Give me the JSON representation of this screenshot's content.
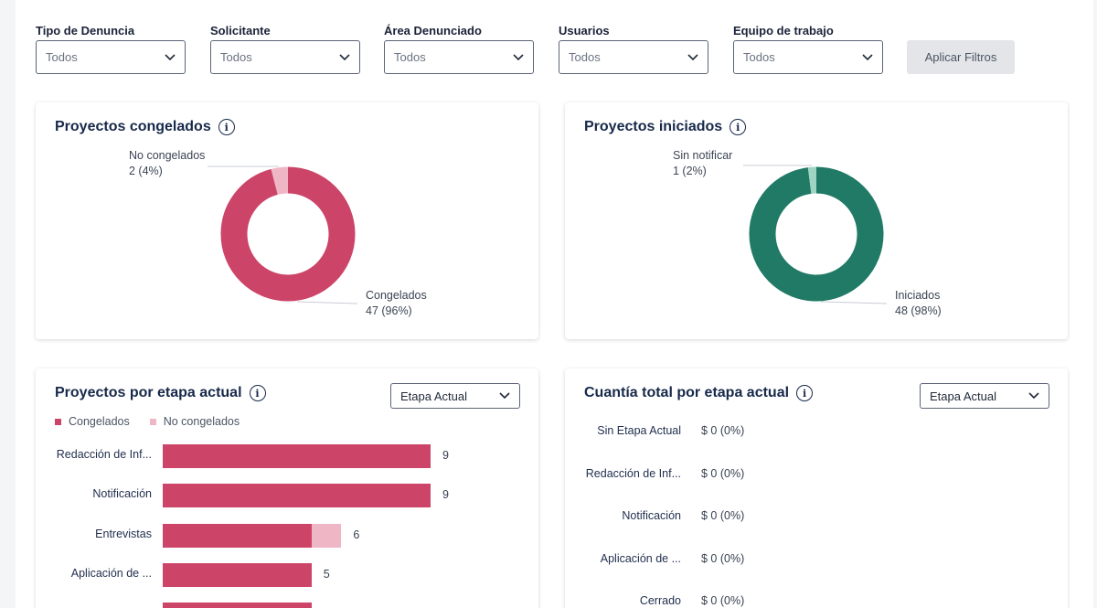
{
  "filters": [
    {
      "label": "Tipo de Denuncia",
      "value": "Todos"
    },
    {
      "label": "Solicitante",
      "value": "Todos"
    },
    {
      "label": "Área Denunciado",
      "value": "Todos"
    },
    {
      "label": "Usuarios",
      "value": "Todos"
    },
    {
      "label": "Equipo de trabajo",
      "value": "Todos"
    }
  ],
  "apply_label": "Aplicar Filtros",
  "congelados_card": {
    "title": "Proyectos congelados",
    "info_glyph": "i",
    "colors": {
      "main": "#cc4468",
      "secondary": "#efb7c5"
    },
    "slices": [
      {
        "name": "Congelados",
        "value": 47,
        "pct": "47 (96%)"
      },
      {
        "name": "No congelados",
        "value": 2,
        "pct": "2 (4%)"
      }
    ]
  },
  "iniciados_card": {
    "title": "Proyectos iniciados",
    "info_glyph": "i",
    "colors": {
      "main": "#207a65",
      "secondary": "#9fd4c2"
    },
    "slices": [
      {
        "name": "Iniciados",
        "value": 48,
        "pct": "48 (98%)"
      },
      {
        "name": "Sin notificar",
        "value": 1,
        "pct": "1 (2%)"
      }
    ]
  },
  "etapa_card": {
    "title": "Proyectos por etapa actual",
    "info_glyph": "i",
    "select": "Etapa Actual",
    "legend": [
      {
        "name": "Congelados",
        "color": "#cc4468"
      },
      {
        "name": "No congelados",
        "color": "#efb7c5"
      }
    ],
    "chart_data": {
      "type": "bar",
      "orientation": "horizontal",
      "stacked": true,
      "categories": [
        "Redacción de Inf...",
        "Notificación",
        "Entrevistas",
        "Aplicación de ...",
        ""
      ],
      "series": [
        {
          "name": "Congelados",
          "values": [
            9,
            9,
            5,
            5,
            5
          ]
        },
        {
          "name": "No congelados",
          "values": [
            0,
            0,
            1,
            0,
            0
          ]
        }
      ],
      "totals": [
        "9",
        "9",
        "6",
        "5",
        ""
      ],
      "xlim": [
        0,
        9
      ]
    }
  },
  "cuantia_card": {
    "title": "Cuantía total por etapa actual",
    "info_glyph": "i",
    "select": "Etapa Actual",
    "rows": [
      {
        "label": "Sin Etapa Actual",
        "value": "$ 0 (0%)"
      },
      {
        "label": "Redacción de Inf...",
        "value": "$ 0 (0%)"
      },
      {
        "label": "Notificación",
        "value": "$ 0 (0%)"
      },
      {
        "label": "Aplicación de ...",
        "value": "$ 0 (0%)"
      },
      {
        "label": "Cerrado",
        "value": "$ 0 (0%)"
      }
    ]
  }
}
